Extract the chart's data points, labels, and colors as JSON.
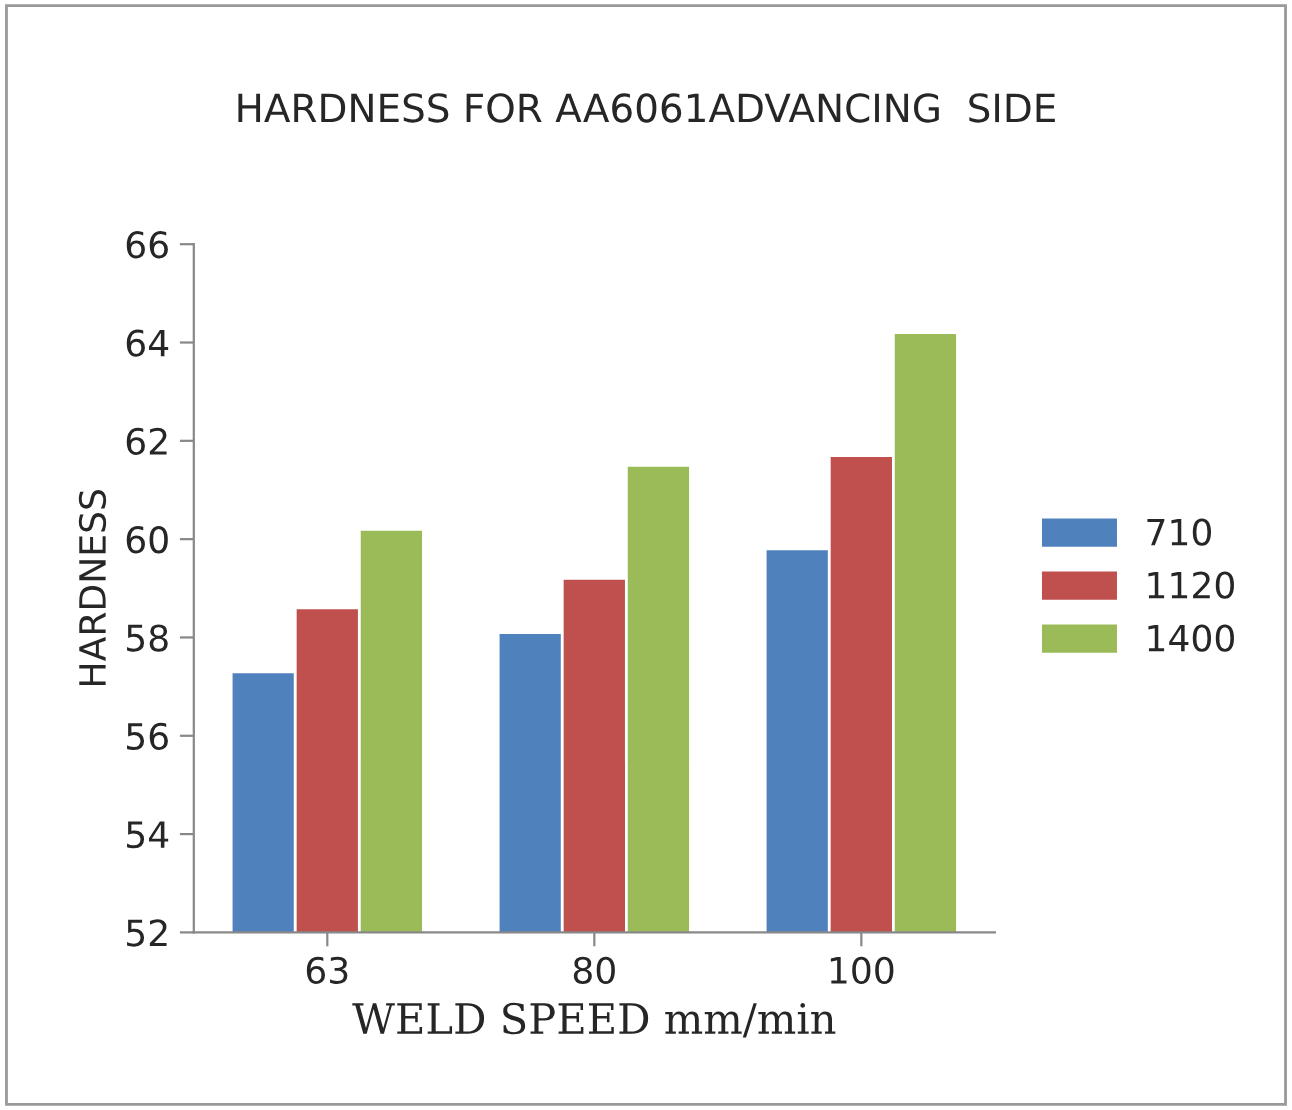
{
  "chart_data": {
    "type": "bar",
    "title": "HARDNESS FOR AA6061ADVANCING  SIDE",
    "xlabel": "WELD SPEED mm/min",
    "ylabel": "HARDNESS",
    "categories": [
      "63",
      "80",
      "100"
    ],
    "series": [
      {
        "name": "710",
        "color": "#4f81bd",
        "values": [
          57.3,
          58.1,
          59.8
        ]
      },
      {
        "name": "1120",
        "color": "#c0504d",
        "values": [
          58.6,
          59.2,
          61.7
        ]
      },
      {
        "name": "1400",
        "color": "#9bbb59",
        "values": [
          60.2,
          61.5,
          64.2
        ]
      }
    ],
    "ylim": [
      52,
      66
    ],
    "yticks": [
      52,
      54,
      56,
      58,
      60,
      62,
      64,
      66
    ],
    "grid": false,
    "legend": "right"
  }
}
